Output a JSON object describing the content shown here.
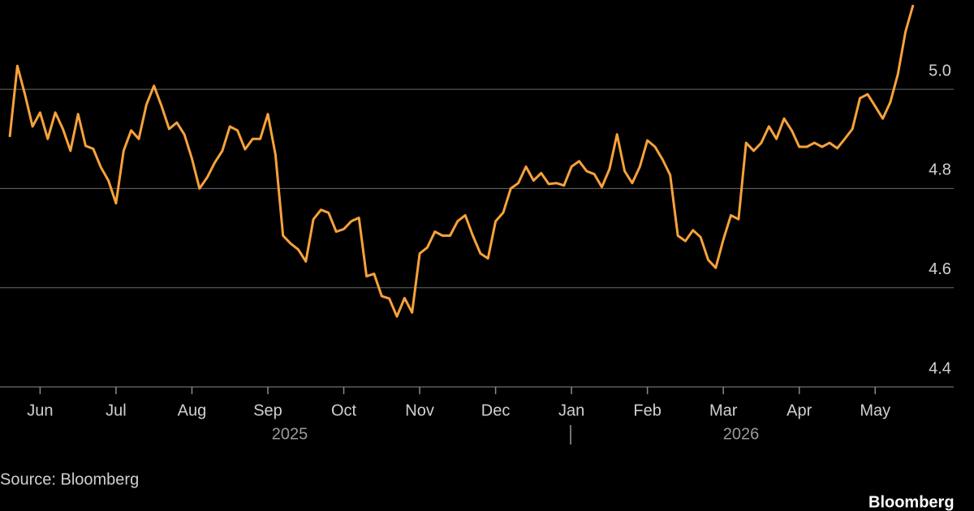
{
  "chart_data": {
    "type": "line",
    "categories": [
      null,
      null,
      null,
      null,
      "Jun",
      null,
      null,
      null,
      null,
      null,
      null,
      null,
      null,
      null,
      "Jul",
      null,
      null,
      null,
      null,
      null,
      null,
      null,
      null,
      null,
      "Aug",
      null,
      null,
      null,
      null,
      null,
      null,
      null,
      null,
      null,
      "Sep",
      null,
      null,
      null,
      null,
      null,
      null,
      null,
      null,
      null,
      "Oct",
      null,
      null,
      null,
      null,
      null,
      null,
      null,
      null,
      null,
      "Nov",
      null,
      null,
      null,
      null,
      null,
      null,
      null,
      null,
      null,
      "Dec",
      null,
      null,
      null,
      null,
      null,
      null,
      null,
      null,
      null,
      "Jan",
      null,
      null,
      null,
      null,
      null,
      null,
      null,
      null,
      null,
      "Feb",
      null,
      null,
      null,
      null,
      null,
      null,
      null,
      null,
      null,
      "Mar",
      null,
      null,
      null,
      null,
      null,
      null,
      null,
      null,
      null,
      "Apr",
      null,
      null,
      null,
      null,
      null,
      null,
      null,
      null,
      null,
      "May",
      null,
      null,
      null,
      null,
      null
    ],
    "values": [
      4.904,
      5.047,
      4.99,
      4.925,
      4.953,
      4.9,
      4.953,
      4.92,
      4.876,
      4.95,
      4.886,
      4.88,
      4.843,
      4.816,
      4.77,
      4.876,
      4.917,
      4.9,
      4.969,
      5.007,
      4.966,
      4.92,
      4.933,
      4.909,
      4.86,
      4.8,
      4.822,
      4.852,
      4.876,
      4.925,
      4.917,
      4.879,
      4.9,
      4.9,
      4.95,
      4.868,
      4.705,
      4.689,
      4.677,
      4.653,
      4.738,
      4.757,
      4.751,
      4.713,
      4.718,
      4.734,
      4.741,
      4.623,
      4.628,
      4.583,
      4.578,
      4.542,
      4.579,
      4.55,
      4.669,
      4.681,
      4.713,
      4.705,
      4.705,
      4.734,
      4.746,
      4.705,
      4.669,
      4.659,
      4.734,
      4.751,
      4.8,
      4.811,
      4.844,
      4.816,
      4.831,
      4.809,
      4.811,
      4.806,
      4.844,
      4.855,
      4.835,
      4.829,
      4.803,
      4.839,
      4.909,
      4.835,
      4.811,
      4.844,
      4.897,
      4.884,
      4.858,
      4.827,
      4.705,
      4.694,
      4.716,
      4.702,
      4.656,
      4.64,
      4.697,
      4.746,
      4.738,
      4.892,
      4.876,
      4.892,
      4.925,
      4.9,
      4.941,
      4.917,
      4.884,
      4.884,
      4.892,
      4.884,
      4.892,
      4.881,
      4.9,
      4.92,
      4.982,
      4.99,
      4.966,
      4.941,
      4.974,
      5.031,
      5.116,
      5.17
    ],
    "color": "#f7a23b",
    "ylim": [
      4.4,
      5.18
    ],
    "yticks": [
      4.4,
      4.6,
      4.8,
      {
        "value": 5,
        "label": "5.0"
      }
    ],
    "grid": true,
    "year_labels": [
      "2025",
      "2026"
    ],
    "source": "Source: Bloomberg",
    "brand": "Bloomberg"
  }
}
